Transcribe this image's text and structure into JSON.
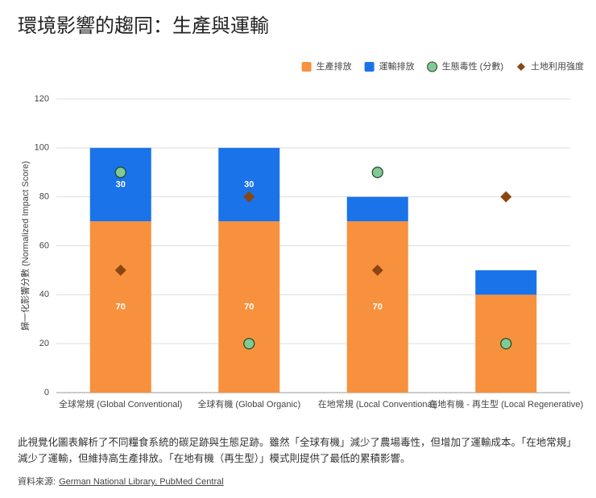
{
  "chart_data": {
    "type": "bar",
    "stacked": true,
    "title": "環境影響的趨同：生產與運輸",
    "ylabel": "歸一化影響分數 (Normalized Impact Score)",
    "categories": [
      "全球常規 (Global Conventional)",
      "全球有機 (Global Organic)",
      "在地常規 (Local Conventional)",
      "在地有機 - 再生型 (Local Regenerative)"
    ],
    "series": [
      {
        "name": "生產排放",
        "color": "#f7913d",
        "type": "bar",
        "values": [
          70,
          70,
          70,
          40
        ]
      },
      {
        "name": "運輸排放",
        "color": "#1a73e8",
        "type": "bar",
        "values": [
          30,
          30,
          10,
          10
        ]
      },
      {
        "name": "生態毒性 (分數)",
        "color": "#81c995",
        "type": "scatter",
        "marker": "circle",
        "values": [
          90,
          20,
          90,
          20
        ]
      },
      {
        "name": "土地利用強度",
        "color": "#8b4513",
        "type": "scatter",
        "marker": "diamond",
        "values": [
          50,
          80,
          50,
          80
        ]
      }
    ],
    "ylim": [
      0,
      120
    ],
    "yticks": [
      0,
      20,
      40,
      60,
      80,
      100,
      120
    ],
    "grid": true,
    "legend": "top-right"
  },
  "description": "此視覺化圖表解析了不同糧食系統的碳足跡與生態足跡。雖然「全球有機」減少了農場毒性，但增加了運輸成本。「在地常規」減少了運輸，但維持高生產排放。「在地有機（再生型）」模式則提供了最低的累積影響。",
  "source": {
    "label": "資料來源:",
    "links": [
      "German National Library",
      "PubMed Central"
    ]
  }
}
